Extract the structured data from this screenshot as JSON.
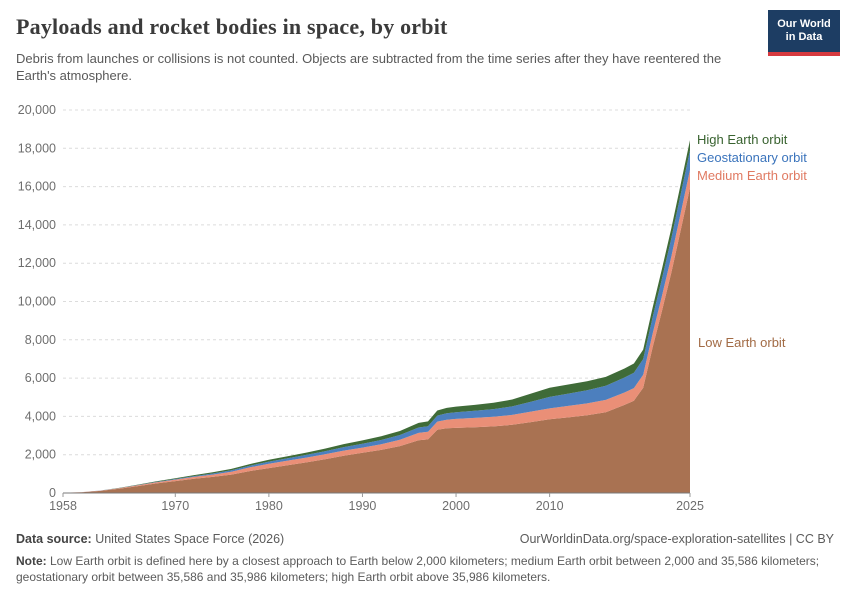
{
  "header": {
    "title": "Payloads and rocket bodies in space, by orbit",
    "subtitle": "Debris from launches or collisions is not counted. Objects are subtracted from the time series after they have reentered the Earth's atmosphere.",
    "logo": {
      "line1": "Our World",
      "line2": "in Data",
      "bg_color": "#1d3d63",
      "accent_color": "#d73a3f"
    }
  },
  "chart_data": {
    "type": "area",
    "stacked": true,
    "title": "Payloads and rocket bodies in space, by orbit",
    "xlabel": "",
    "ylabel": "",
    "xlim": [
      1958,
      2025
    ],
    "ylim": [
      0,
      20000
    ],
    "grid": "horizontal-dashed",
    "legend_position": "right",
    "xticks": [
      1958,
      1970,
      1980,
      1990,
      2000,
      2010,
      2025
    ],
    "yticks": [
      0,
      2000,
      4000,
      6000,
      8000,
      10000,
      12000,
      14000,
      16000,
      18000,
      20000
    ],
    "x": [
      1958,
      1960,
      1962,
      1964,
      1966,
      1968,
      1970,
      1972,
      1974,
      1976,
      1978,
      1980,
      1982,
      1984,
      1986,
      1988,
      1990,
      1992,
      1994,
      1996,
      1997,
      1998,
      1999,
      2000,
      2002,
      2004,
      2006,
      2008,
      2010,
      2012,
      2014,
      2016,
      2018,
      2019,
      2020,
      2021,
      2022,
      2023,
      2024,
      2025
    ],
    "series": [
      {
        "name": "Low Earth orbit",
        "color": "#A97252",
        "text_color": "#A26B45",
        "values": [
          10,
          40,
          110,
          220,
          360,
          500,
          620,
          740,
          840,
          960,
          1150,
          1300,
          1450,
          1600,
          1760,
          1950,
          2100,
          2250,
          2450,
          2750,
          2800,
          3300,
          3380,
          3400,
          3430,
          3480,
          3560,
          3700,
          3850,
          3950,
          4060,
          4220,
          4600,
          4820,
          5500,
          7600,
          9500,
          11500,
          13700,
          15930
        ]
      },
      {
        "name": "Medium Earth orbit",
        "color": "#EA8F77",
        "text_color": "#E07A62",
        "values": [
          2,
          6,
          15,
          30,
          45,
          60,
          80,
          100,
          120,
          150,
          190,
          230,
          240,
          250,
          260,
          265,
          270,
          300,
          330,
          390,
          400,
          430,
          450,
          470,
          490,
          500,
          520,
          550,
          570,
          600,
          620,
          640,
          650,
          660,
          680,
          720,
          780,
          840,
          890,
          940
        ]
      },
      {
        "name": "Geostationary orbit",
        "color": "#4C7FBE",
        "text_color": "#3B74BC",
        "values": [
          0,
          1,
          3,
          6,
          12,
          20,
          30,
          45,
          60,
          75,
          90,
          110,
          125,
          140,
          160,
          180,
          200,
          220,
          250,
          280,
          290,
          310,
          330,
          345,
          370,
          400,
          440,
          520,
          600,
          640,
          690,
          740,
          780,
          800,
          820,
          850,
          900,
          950,
          990,
          1030
        ]
      },
      {
        "name": "High Earth orbit",
        "color": "#3F6B38",
        "text_color": "#38622F",
        "values": [
          0,
          2,
          5,
          12,
          22,
          32,
          42,
          52,
          62,
          72,
          82,
          95,
          105,
          120,
          140,
          160,
          175,
          190,
          210,
          240,
          250,
          270,
          285,
          295,
          310,
          330,
          360,
          420,
          480,
          475,
          470,
          465,
          470,
          480,
          490,
          500,
          510,
          520,
          525,
          530
        ]
      }
    ]
  },
  "footer": {
    "source_label": "Data source:",
    "source_text": " United States Space Force (2026)",
    "link_text": "OurWorldinData.org/space-exploration-satellites | CC BY",
    "note_label": "Note:",
    "note_text": " Low Earth orbit is defined here by a closest approach to Earth below 2,000 kilometers; medium Earth orbit between 2,000 and 35,586 kilometers; geostationary orbit between 35,586 and 35,986 kilometers; high Earth orbit above 35,986 kilometers."
  }
}
